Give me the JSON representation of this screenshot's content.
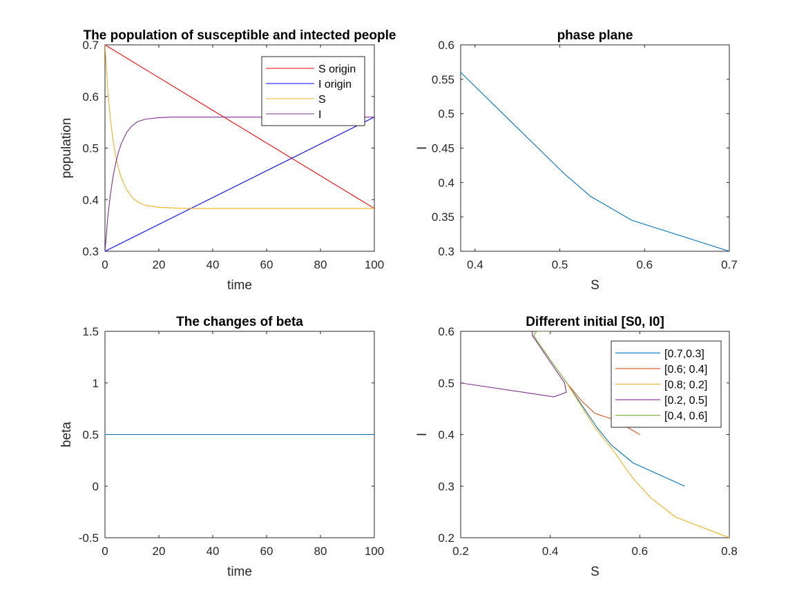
{
  "chart_data": [
    {
      "type": "line",
      "title": "The population of susceptible and intected people",
      "xlabel": "time",
      "ylabel": "population",
      "xlim": [
        0,
        100
      ],
      "ylim": [
        0.3,
        0.7
      ],
      "xticks": [
        0,
        20,
        40,
        60,
        80,
        100
      ],
      "yticks": [
        0.3,
        0.4,
        0.5,
        0.6,
        0.7
      ],
      "xtick_labels": [
        "0",
        "20",
        "40",
        "60",
        "80",
        "100"
      ],
      "ytick_labels": [
        "0.3",
        "0.4",
        "0.5",
        "0.6",
        "0.7"
      ],
      "grid": false,
      "legend": "top-right",
      "series": [
        {
          "name": "S origin",
          "color": "#ff0000",
          "x": [
            0,
            100
          ],
          "y": [
            0.7,
            0.383
          ]
        },
        {
          "name": "I origin",
          "color": "#0000ff",
          "x": [
            0,
            100
          ],
          "y": [
            0.3,
            0.56
          ]
        },
        {
          "name": "S",
          "color": "#edb120",
          "x": [
            0,
            1,
            2,
            3,
            4,
            5,
            6,
            8,
            10,
            12,
            15,
            20,
            25,
            30,
            40,
            60,
            100
          ],
          "y": [
            0.7,
            0.615,
            0.557,
            0.515,
            0.484,
            0.461,
            0.443,
            0.42,
            0.405,
            0.396,
            0.389,
            0.385,
            0.384,
            0.383,
            0.383,
            0.383,
            0.383
          ]
        },
        {
          "name": "I",
          "color": "#7e2f8e",
          "x": [
            0,
            1,
            2,
            3,
            4,
            5,
            6,
            8,
            10,
            12,
            15,
            20,
            25,
            30,
            40,
            60,
            100
          ],
          "y": [
            0.3,
            0.364,
            0.41,
            0.445,
            0.471,
            0.492,
            0.508,
            0.53,
            0.543,
            0.551,
            0.556,
            0.559,
            0.56,
            0.56,
            0.56,
            0.56,
            0.56
          ]
        }
      ]
    },
    {
      "type": "line",
      "title": "phase plane",
      "xlabel": "S",
      "ylabel": "I",
      "xlim": [
        0.383,
        0.7
      ],
      "ylim": [
        0.3,
        0.6
      ],
      "xticks": [
        0.4,
        0.5,
        0.6,
        0.7
      ],
      "yticks": [
        0.3,
        0.35,
        0.4,
        0.45,
        0.5,
        0.55,
        0.6
      ],
      "xtick_labels": [
        "0.4",
        "0.5",
        "0.6",
        "0.7"
      ],
      "ytick_labels": [
        "0.3",
        "0.35",
        "0.4",
        "0.45",
        "0.5",
        "0.55",
        "0.6"
      ],
      "grid": false,
      "series": [
        {
          "color": "#0072bd",
          "x": [
            0.7,
            0.585,
            0.536,
            0.505,
            0.383
          ],
          "y": [
            0.3,
            0.345,
            0.38,
            0.413,
            0.56
          ]
        }
      ]
    },
    {
      "type": "line",
      "title": "The changes of beta",
      "xlabel": "time",
      "ylabel": "beta",
      "xlim": [
        0,
        100
      ],
      "ylim": [
        -0.5,
        1.5
      ],
      "xticks": [
        0,
        20,
        40,
        60,
        80,
        100
      ],
      "yticks": [
        -0.5,
        0,
        0.5,
        1,
        1.5
      ],
      "xtick_labels": [
        "0",
        "20",
        "40",
        "60",
        "80",
        "100"
      ],
      "ytick_labels": [
        "-0.5",
        "0",
        "0.5",
        "1",
        "1.5"
      ],
      "grid": false,
      "series": [
        {
          "color": "#0072bd",
          "x": [
            0,
            100
          ],
          "y": [
            0.5,
            0.5
          ]
        }
      ]
    },
    {
      "type": "line",
      "title": "Different initial [S0, I0]",
      "xlabel": "S",
      "ylabel": "I",
      "xlim": [
        0.2,
        0.8
      ],
      "ylim": [
        0.2,
        0.6
      ],
      "xticks": [
        0.2,
        0.4,
        0.6,
        0.8
      ],
      "yticks": [
        0.2,
        0.3,
        0.4,
        0.5,
        0.6
      ],
      "xtick_labels": [
        "0.2",
        "0.4",
        "0.6",
        "0.8"
      ],
      "ytick_labels": [
        "0.2",
        "0.3",
        "0.4",
        "0.5",
        "0.6"
      ],
      "grid": false,
      "legend": "top-right",
      "series": [
        {
          "name": "[0.7,0.3]",
          "color": "#0072bd",
          "x": [
            0.7,
            0.585,
            0.536,
            0.505,
            0.437
          ],
          "y": [
            0.3,
            0.345,
            0.38,
            0.413,
            0.5
          ]
        },
        {
          "name": "[0.6; 0.4]",
          "color": "#d95319",
          "x": [
            0.6,
            0.545,
            0.5,
            0.47,
            0.437
          ],
          "y": [
            0.4,
            0.428,
            0.441,
            0.465,
            0.5
          ]
        },
        {
          "name": "[0.8; 0.2]",
          "color": "#edb120",
          "x": [
            0.8,
            0.68,
            0.625,
            0.583,
            0.54,
            0.5,
            0.437
          ],
          "y": [
            0.2,
            0.24,
            0.277,
            0.317,
            0.37,
            0.413,
            0.5
          ]
        },
        {
          "name": "[0.2, 0.5]",
          "color": "#7e2f8e",
          "x": [
            0.2,
            0.408,
            0.436,
            0.432,
            0.36,
            0.36
          ],
          "y": [
            0.5,
            0.473,
            0.482,
            0.5,
            0.592,
            0.6
          ]
        },
        {
          "name": "[0.4, 0.6]",
          "color": "#77ac30",
          "x": [
            0.4,
            0.37,
            0.363,
            0.372,
            0.4,
            0.437
          ],
          "y": [
            0.6,
            0.6,
            0.592,
            0.58,
            0.545,
            0.5
          ]
        }
      ]
    }
  ]
}
